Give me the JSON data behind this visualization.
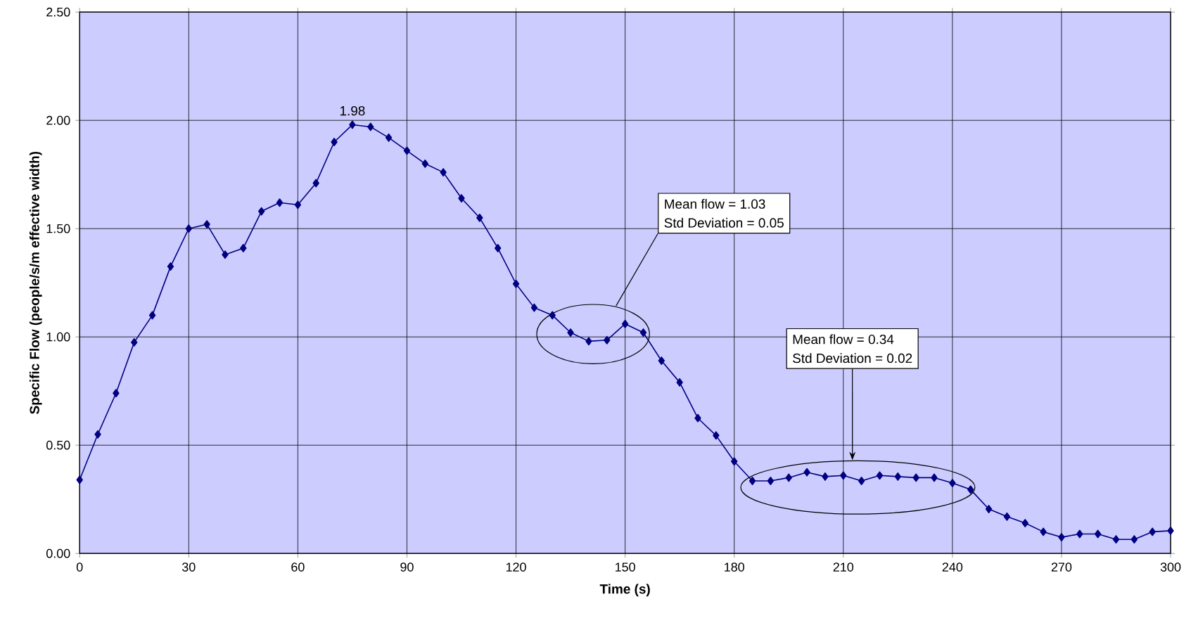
{
  "chart_data": {
    "type": "line",
    "xlabel": "Time (s)",
    "ylabel": "Specific Flow (people/s/m effective width)",
    "x": [
      0,
      5,
      10,
      15,
      20,
      25,
      30,
      35,
      40,
      45,
      50,
      55,
      60,
      65,
      70,
      75,
      80,
      85,
      90,
      95,
      100,
      105,
      110,
      115,
      120,
      125,
      130,
      135,
      140,
      145,
      150,
      155,
      160,
      165,
      170,
      175,
      180,
      185,
      190,
      195,
      200,
      205,
      210,
      215,
      220,
      225,
      230,
      235,
      240,
      245,
      250,
      255,
      260,
      265,
      270,
      275,
      280,
      285,
      290,
      295,
      300
    ],
    "series": [
      {
        "color": "#000080",
        "values": [
          0.34,
          0.55,
          0.74,
          0.975,
          1.1,
          1.325,
          1.5,
          1.52,
          1.38,
          1.41,
          1.58,
          1.62,
          1.61,
          1.71,
          1.9,
          1.98,
          1.97,
          1.92,
          1.86,
          1.8,
          1.76,
          1.64,
          1.55,
          1.41,
          1.245,
          1.135,
          1.1,
          1.02,
          0.98,
          0.985,
          1.06,
          1.02,
          0.89,
          0.79,
          0.625,
          0.545,
          0.425,
          0.335,
          0.335,
          0.35,
          0.375,
          0.355,
          0.36,
          0.335,
          0.36,
          0.355,
          0.35,
          0.35,
          0.325,
          0.295,
          0.205,
          0.17,
          0.14,
          0.1,
          0.075,
          0.09,
          0.09,
          0.065,
          0.065,
          0.1,
          0.105
        ]
      }
    ],
    "xlim": [
      0,
      300
    ],
    "xticks": [
      0,
      30,
      60,
      90,
      120,
      150,
      180,
      210,
      240,
      270,
      300
    ],
    "ylim": [
      0,
      2.5
    ],
    "yticks": [
      {
        "value": 0,
        "label": "0.00"
      },
      {
        "value": 0.5,
        "label": "0.50"
      },
      {
        "value": 1,
        "label": "1.00"
      },
      {
        "value": 1.5,
        "label": "1.50"
      },
      {
        "value": 2,
        "label": "2.00"
      },
      {
        "value": 2.5,
        "label": "2.50"
      }
    ],
    "grid": true,
    "marker": "diamond",
    "line_style": "solid",
    "annotations": [
      {
        "text": "1.98",
        "x": 75,
        "y": 1.98
      },
      "Mean flow = 1.03",
      "Std Deviation = 0.05",
      "Mean flow = 0.34",
      "Std Deviation = 0.02"
    ]
  }
}
